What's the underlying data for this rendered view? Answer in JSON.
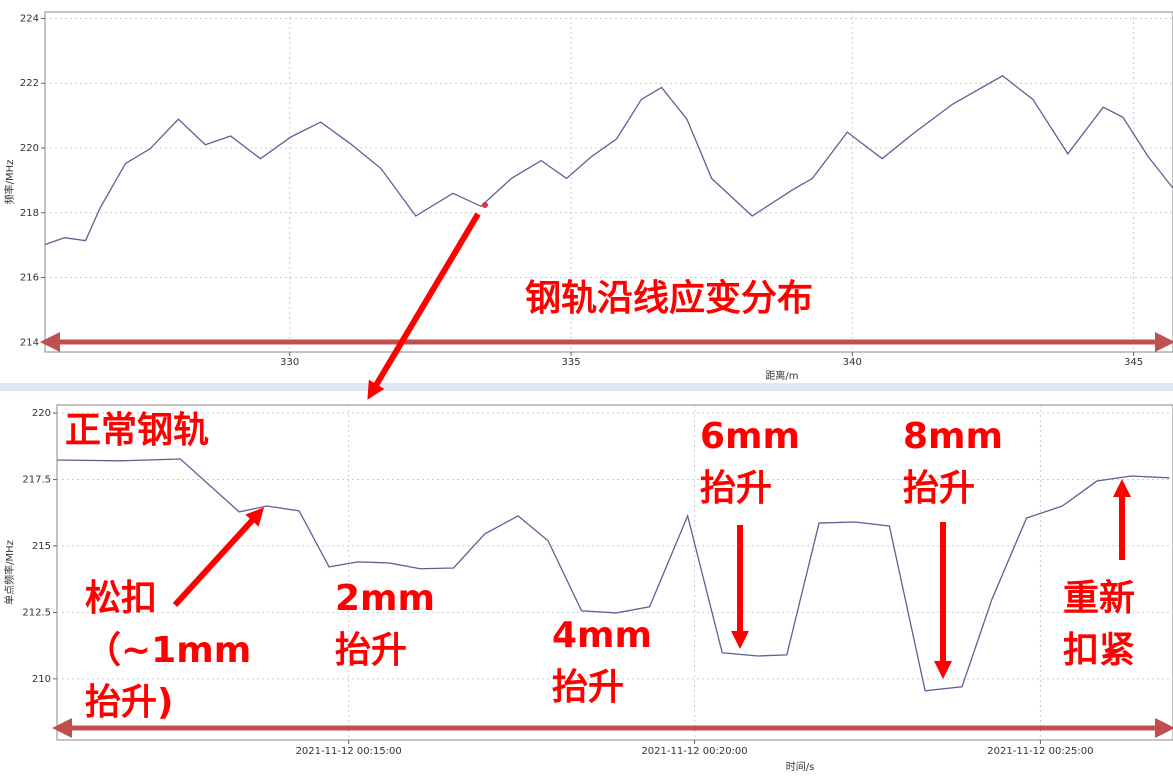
{
  "chart_data": [
    {
      "type": "line",
      "xlabel": "距离/m",
      "ylabel": "频率/MHz",
      "color": "#5f5f96",
      "x": [
        325.65,
        326.0,
        326.37,
        326.63,
        327.08,
        327.52,
        328.02,
        328.5,
        328.95,
        329.48,
        330.02,
        330.55,
        331.08,
        331.62,
        332.24,
        332.9,
        333.4,
        333.94,
        334.47,
        334.92,
        335.36,
        335.81,
        336.25,
        336.61,
        337.06,
        337.5,
        338.22,
        338.93,
        339.29,
        339.91,
        340.53,
        341.07,
        341.78,
        342.67,
        343.21,
        343.83,
        344.46,
        344.81,
        345.26,
        345.7
      ],
      "values": [
        217.02,
        217.23,
        217.14,
        218.15,
        219.52,
        219.98,
        220.89,
        220.1,
        220.37,
        219.67,
        220.34,
        220.8,
        220.13,
        219.37,
        217.9,
        218.6,
        218.2,
        219.06,
        219.61,
        219.06,
        219.73,
        220.28,
        221.5,
        221.87,
        220.89,
        219.06,
        217.9,
        218.7,
        219.06,
        220.49,
        219.67,
        220.43,
        221.35,
        222.23,
        221.5,
        219.82,
        221.26,
        220.95,
        219.73,
        218.76
      ],
      "marker": {
        "x": 333.47,
        "y": 218.24,
        "color": "#e0303a"
      },
      "xlim": [
        325.65,
        345.7
      ],
      "xticks": [
        330,
        335,
        340,
        345
      ],
      "ylim": [
        213.7,
        224.2
      ],
      "yticks": [
        214,
        216,
        218,
        220,
        222,
        224
      ],
      "grid": true,
      "annotations": [
        {
          "lines": [
            "钢轨沿线应变分布"
          ]
        }
      ]
    },
    {
      "type": "line",
      "xlabel": "时间/s",
      "ylabel": "单点频率/MHz",
      "color": "#5f5f96",
      "x": [
        "2021-11-12 00:10:47",
        "2021-11-12 00:11:41",
        "2021-11-12 00:12:34",
        "2021-11-12 00:13:25",
        "2021-11-12 00:13:49",
        "2021-11-12 00:14:17",
        "2021-11-12 00:14:43",
        "2021-11-12 00:15:08",
        "2021-11-12 00:15:35",
        "2021-11-12 00:16:02",
        "2021-11-12 00:16:31",
        "2021-11-12 00:16:58",
        "2021-11-12 00:17:27",
        "2021-11-12 00:17:53",
        "2021-11-12 00:18:22",
        "2021-11-12 00:18:52",
        "2021-11-12 00:19:21",
        "2021-11-12 00:19:54",
        "2021-11-12 00:20:24",
        "2021-11-12 00:20:55",
        "2021-11-12 00:21:20",
        "2021-11-12 00:21:48",
        "2021-11-12 00:22:19",
        "2021-11-12 00:22:49",
        "2021-11-12 00:23:20",
        "2021-11-12 00:23:52",
        "2021-11-12 00:24:18",
        "2021-11-12 00:24:48",
        "2021-11-12 00:25:19",
        "2021-11-12 00:25:49",
        "2021-11-12 00:26:19",
        "2021-11-12 00:26:52"
      ],
      "values": [
        218.23,
        218.2,
        218.27,
        216.28,
        216.5,
        216.32,
        214.21,
        214.4,
        214.36,
        214.14,
        214.17,
        215.45,
        216.13,
        215.19,
        212.56,
        212.48,
        212.71,
        216.13,
        210.98,
        210.86,
        210.9,
        215.86,
        215.9,
        215.75,
        209.55,
        209.7,
        213.0,
        216.05,
        216.5,
        217.44,
        217.63,
        217.56
      ],
      "xlim": [
        "2021-11-12 00:10:47",
        "2021-11-12 00:26:55"
      ],
      "xticks": [
        "2021-11-12 00:15:00",
        "2021-11-12 00:20:00",
        "2021-11-12 00:25:00"
      ],
      "ylim": [
        207.7,
        220.3
      ],
      "yticks": [
        210,
        212.5,
        215,
        217.5,
        220
      ],
      "grid": true,
      "annotations": [
        {
          "lines": [
            "正常钢轨"
          ]
        },
        {
          "lines": [
            "松扣",
            "（~1mm",
            "抬升)"
          ]
        },
        {
          "lines": [
            "2mm",
            "抬升"
          ]
        },
        {
          "lines": [
            "4mm",
            "抬升"
          ]
        },
        {
          "lines": [
            "6mm",
            "抬升"
          ]
        },
        {
          "lines": [
            "8mm",
            "抬升"
          ]
        },
        {
          "lines": [
            "重新",
            "扣紧"
          ]
        }
      ]
    }
  ]
}
